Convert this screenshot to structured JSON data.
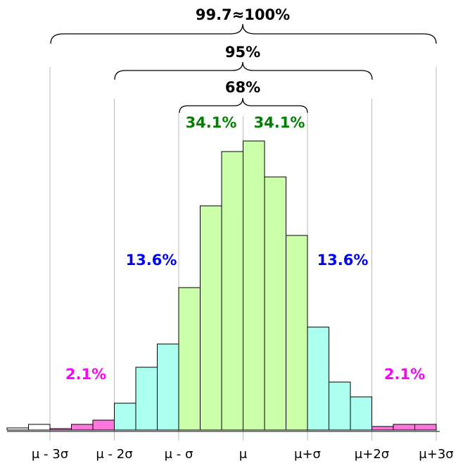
{
  "chart_data": {
    "type": "histogram",
    "bins": [
      -11,
      -10,
      -9,
      -8,
      -7,
      -6,
      -5,
      -4,
      -3,
      -2,
      -1,
      0,
      1,
      2,
      3,
      4,
      5,
      6,
      7,
      8,
      9
    ],
    "values": [
      3,
      8,
      2,
      8,
      14,
      38,
      89,
      122,
      202,
      318,
      395,
      410,
      359,
      276,
      146,
      68,
      47,
      5,
      8,
      8
    ],
    "colors": [
      "#ffffff",
      "#ffffff",
      "#ff77dd",
      "#ff77dd",
      "#ff77dd",
      "#aaffee",
      "#aaffee",
      "#aaffee",
      "#ccffaa",
      "#ccffaa",
      "#ccffaa",
      "#ccffaa",
      "#ccffaa",
      "#ccffaa",
      "#aaffee",
      "#aaffee",
      "#aaffee",
      "#ff77dd",
      "#ff77dd",
      "#ff77dd"
    ],
    "xlim": [
      -11,
      9
    ],
    "ylim": [
      0,
      420
    ],
    "xticks": [
      {
        "value": -9,
        "label": "μ - 3σ"
      },
      {
        "value": -6,
        "label": "μ - 2σ"
      },
      {
        "value": -3,
        "label": "μ - σ"
      },
      {
        "value": 0,
        "label": "μ"
      },
      {
        "value": 3,
        "label": "μ+σ"
      },
      {
        "value": 6,
        "label": "μ+2σ"
      },
      {
        "value": 9,
        "label": "μ+3σ"
      }
    ],
    "grid": true,
    "annotations": [
      {
        "text": "99.7≈100%",
        "color": "#000000"
      },
      {
        "text": "95%",
        "color": "#000000"
      },
      {
        "text": "68%",
        "color": "#000000"
      },
      {
        "text": "34.1%",
        "color": "#008000"
      },
      {
        "text": "34.1%",
        "color": "#008000"
      },
      {
        "text": "13.6%",
        "color": "#0000ff"
      },
      {
        "text": "13.6%",
        "color": "#0000ff"
      },
      {
        "text": "2.1%",
        "color": "#ff00ff"
      },
      {
        "text": "2.1%",
        "color": "#ff00ff"
      }
    ]
  }
}
